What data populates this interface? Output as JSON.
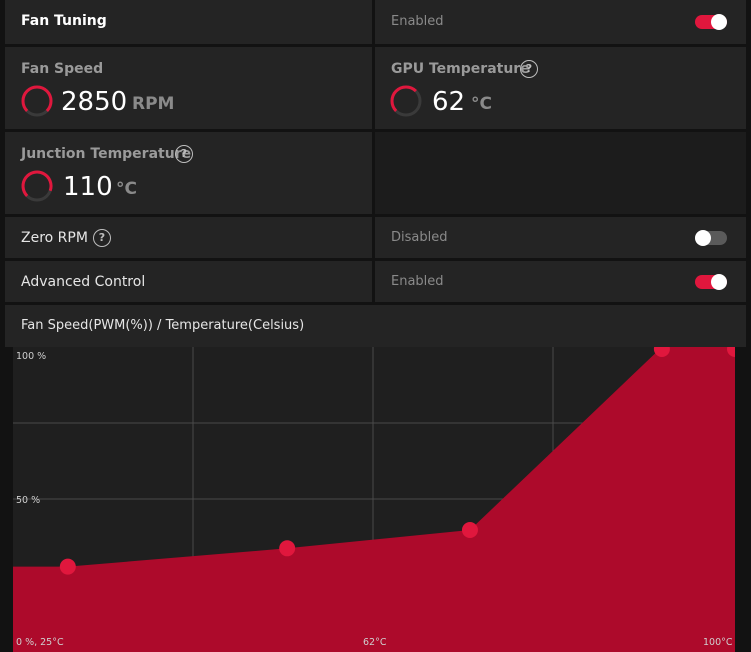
{
  "fan_tuning": {
    "title": "Fan Tuning",
    "state": "Enabled",
    "enabled": true
  },
  "fan_speed": {
    "label": "Fan Speed",
    "value": "2850",
    "unit": "RPM",
    "gauge_level": 0.75
  },
  "gpu_temperature": {
    "label": "GPU Temperature",
    "value": "62",
    "unit": "°C",
    "gauge_level": 0.62
  },
  "junction_temperature": {
    "label": "Junction Temperature",
    "value": "110",
    "unit": "°C",
    "gauge_level": 0.85
  },
  "zero_rpm": {
    "label": "Zero RPM",
    "state": "Disabled",
    "enabled": false
  },
  "advanced_control": {
    "label": "Advanced Control",
    "state": "Enabled",
    "enabled": true
  },
  "curve_title": "Fan Speed(PWM(%)) / Temperature(Celsius)",
  "help_glyph": "?",
  "icons": {
    "help": "question-circle-icon",
    "gauge": "arc-gauge-icon"
  },
  "colors": {
    "accent": "#e0173d",
    "curve_fill": "#ad0a2b",
    "panel": "#242424"
  },
  "chart_data": {
    "type": "area",
    "title": "Fan Speed(PWM(%)) / Temperature(Celsius)",
    "x": [
      27,
      51,
      71,
      92,
      100
    ],
    "y": [
      28,
      34,
      40,
      100,
      100
    ],
    "xlim": [
      21,
      100
    ],
    "ylim": [
      0,
      100
    ],
    "tick_labels": {
      "y_top": "100 %",
      "y_mid": "50 %",
      "origin": "0 %, 25°C",
      "x_mid": "62°C",
      "x_max": "100°C"
    },
    "grid": true
  }
}
